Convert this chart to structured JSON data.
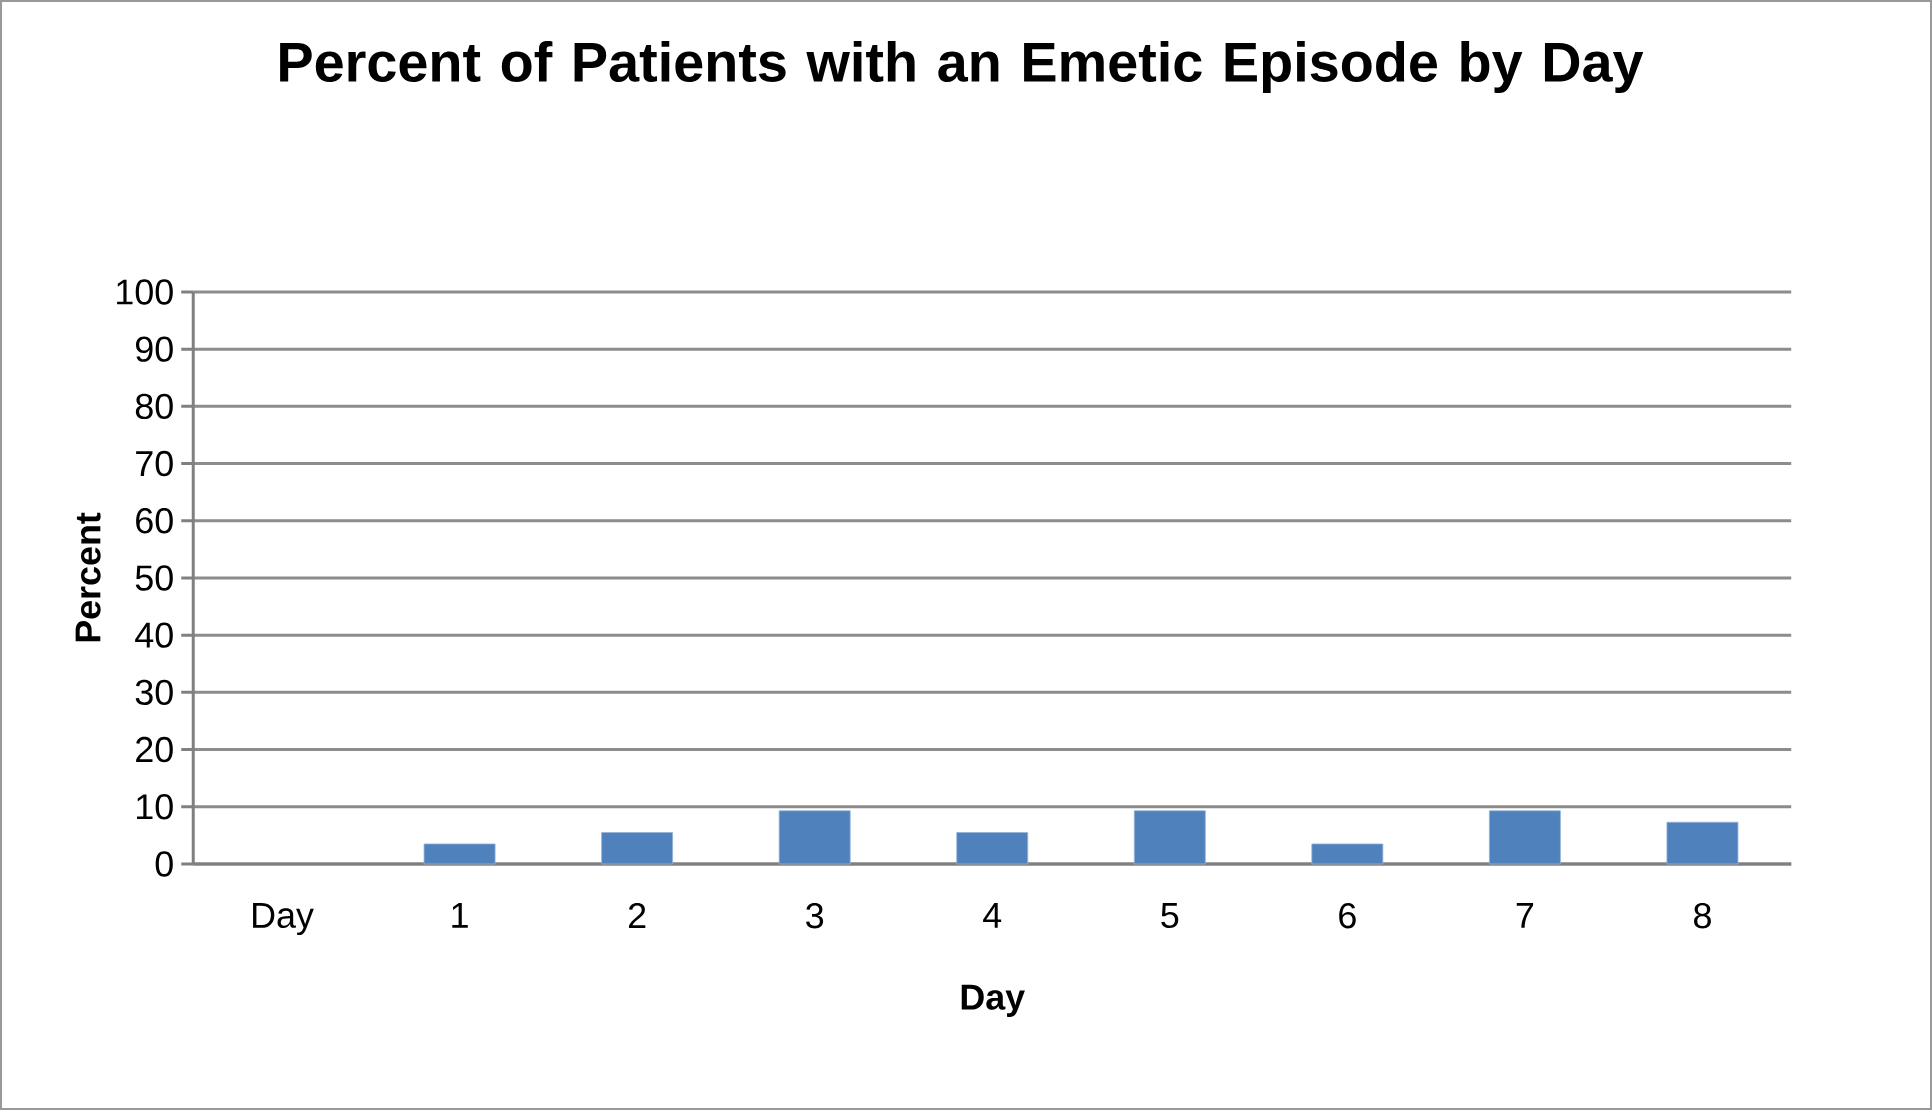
{
  "chart_data": {
    "type": "bar",
    "title": "Percent of Patients with an Emetic Episode by Day",
    "xlabel": "Day",
    "ylabel": "Percent",
    "categories": [
      "Day",
      "1",
      "2",
      "3",
      "4",
      "5",
      "6",
      "7",
      "8"
    ],
    "values": [
      null,
      3.5,
      5.5,
      9.3,
      5.5,
      9.3,
      3.5,
      9.3,
      7.3
    ],
    "color": "#4f81bd",
    "ylim": [
      0,
      100
    ],
    "yticks": [
      0,
      10,
      20,
      30,
      40,
      50,
      60,
      70,
      80,
      90,
      100
    ],
    "grid": "y"
  }
}
